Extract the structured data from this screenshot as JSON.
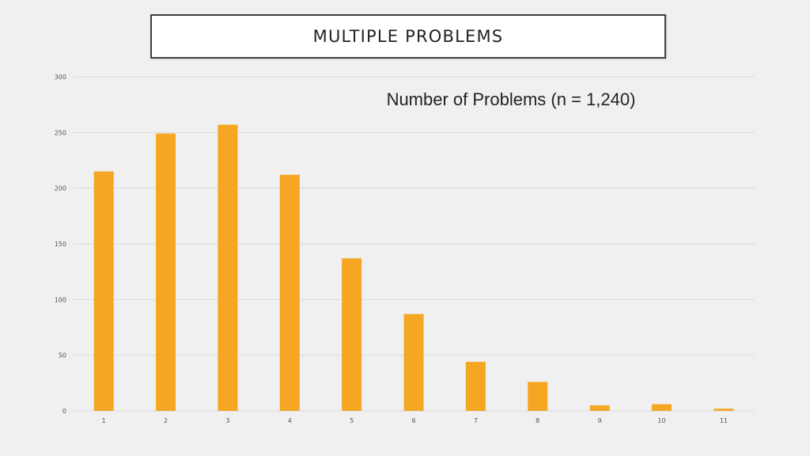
{
  "slide": {
    "title": "MULTIPLE PROBLEMS"
  },
  "chart_data": {
    "type": "bar",
    "title": "Number of Problems (n = 1,240)",
    "xlabel": "",
    "ylabel": "",
    "categories": [
      "1",
      "2",
      "3",
      "4",
      "5",
      "6",
      "7",
      "8",
      "9",
      "10",
      "11"
    ],
    "values": [
      215,
      249,
      257,
      212,
      137,
      87,
      44,
      26,
      5,
      6,
      2
    ],
    "ylim": [
      0,
      300
    ],
    "yticks": [
      "0",
      "50",
      "100",
      "150",
      "200",
      "250",
      "300"
    ],
    "grid": true,
    "legend": "none",
    "bar_color": "#F5A623",
    "grid_color": "#d9d9d9"
  }
}
